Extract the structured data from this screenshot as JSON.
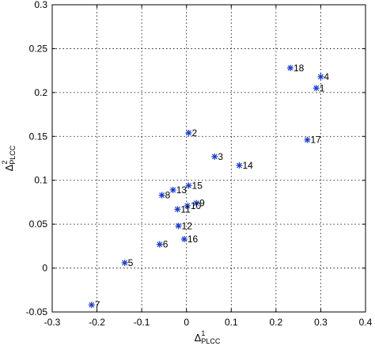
{
  "chart_data": {
    "type": "scatter",
    "title": "",
    "xlabel": "Δ",
    "xlabel_sup": "1",
    "xlabel_sub": "PLCC",
    "ylabel": "Δ",
    "ylabel_sup": "2",
    "ylabel_sub": "PLCC",
    "xlim": [
      -0.3,
      0.4
    ],
    "ylim": [
      -0.05,
      0.3
    ],
    "grid": true,
    "marker_color": "#1a3cc8",
    "xticks": [
      -0.3,
      -0.2,
      -0.1,
      0,
      0.1,
      0.2,
      0.3,
      0.4
    ],
    "xtick_labels": [
      "-0.3",
      "-0.2",
      "-0.1",
      "0",
      "0.1",
      "0.2",
      "0.3",
      "0.4"
    ],
    "yticks": [
      -0.05,
      0,
      0.05,
      0.1,
      0.15,
      0.2,
      0.25,
      0.3
    ],
    "ytick_labels": [
      "-0.05",
      "0",
      "0.05",
      "0.1",
      "0.15",
      "0.2",
      "0.25",
      "0.3"
    ],
    "points": [
      {
        "label": "1",
        "x": 0.29,
        "y": 0.205
      },
      {
        "label": "2",
        "x": 0.005,
        "y": 0.154
      },
      {
        "label": "3",
        "x": 0.063,
        "y": 0.127
      },
      {
        "label": "4",
        "x": 0.3,
        "y": 0.218
      },
      {
        "label": "5",
        "x": -0.138,
        "y": 0.006
      },
      {
        "label": "6",
        "x": -0.06,
        "y": 0.027
      },
      {
        "label": "7",
        "x": -0.212,
        "y": -0.042
      },
      {
        "label": "8",
        "x": -0.055,
        "y": 0.083
      },
      {
        "label": "9",
        "x": 0.022,
        "y": 0.074
      },
      {
        "label": "10",
        "x": 0.002,
        "y": 0.071
      },
      {
        "label": "11",
        "x": -0.02,
        "y": 0.067
      },
      {
        "label": "12",
        "x": -0.018,
        "y": 0.048
      },
      {
        "label": "13",
        "x": -0.03,
        "y": 0.089
      },
      {
        "label": "14",
        "x": 0.118,
        "y": 0.117
      },
      {
        "label": "15",
        "x": 0.005,
        "y": 0.094
      },
      {
        "label": "16",
        "x": -0.005,
        "y": 0.033
      },
      {
        "label": "17",
        "x": 0.27,
        "y": 0.146
      },
      {
        "label": "18",
        "x": 0.232,
        "y": 0.228
      }
    ]
  }
}
